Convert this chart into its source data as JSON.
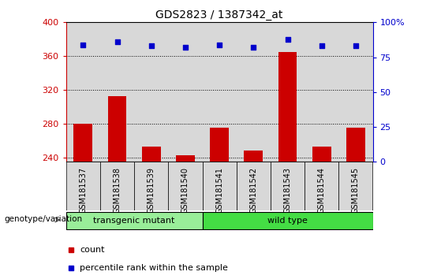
{
  "title": "GDS2823 / 1387342_at",
  "samples": [
    "GSM181537",
    "GSM181538",
    "GSM181539",
    "GSM181540",
    "GSM181541",
    "GSM181542",
    "GSM181543",
    "GSM181544",
    "GSM181545"
  ],
  "counts": [
    280,
    313,
    253,
    243,
    275,
    248,
    365,
    253,
    275
  ],
  "percentiles": [
    84,
    86,
    83,
    82,
    84,
    82,
    88,
    83,
    83
  ],
  "ylim_left": [
    235,
    400
  ],
  "ylim_right": [
    0,
    100
  ],
  "bar_color": "#cc0000",
  "scatter_color": "#0000cc",
  "groups": [
    {
      "label": "transgenic mutant",
      "start": 0,
      "end": 4,
      "color": "#99ee99"
    },
    {
      "label": "wild type",
      "start": 4,
      "end": 9,
      "color": "#44dd44"
    }
  ],
  "group_label": "genotype/variation",
  "legend_count": "count",
  "legend_percentile": "percentile rank within the sample",
  "tick_color_left": "#cc0000",
  "tick_color_right": "#0000cc",
  "yticks_left": [
    240,
    280,
    320,
    360,
    400
  ],
  "yticks_right": [
    0,
    25,
    50,
    75,
    100
  ],
  "bg_color": "#d8d8d8",
  "right_ytick_labels": [
    "0",
    "25",
    "50",
    "75",
    "100%"
  ]
}
